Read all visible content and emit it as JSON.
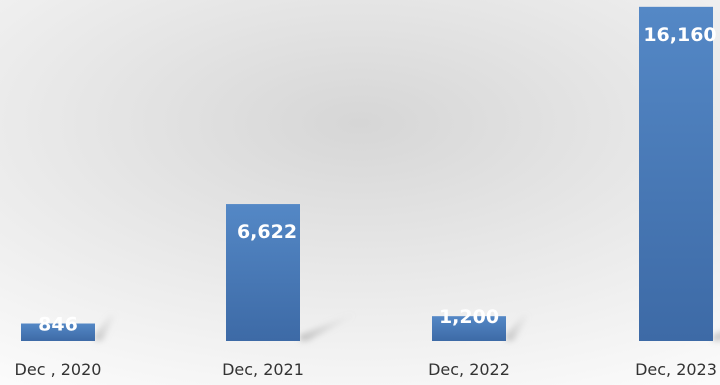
{
  "chart_data": {
    "type": "bar",
    "categories": [
      "Dec , 2020",
      "Dec, 2021",
      "Dec, 2022",
      "Dec, 2023"
    ],
    "values": [
      846,
      6622,
      1200,
      16160
    ],
    "value_labels": [
      "846",
      "6,622",
      "1,200",
      "16,160"
    ],
    "title": "",
    "xlabel": "",
    "ylabel": "",
    "ylim": [
      0,
      16200
    ],
    "grid": false,
    "legend": "none",
    "bar_color": "#4a7ab8"
  }
}
